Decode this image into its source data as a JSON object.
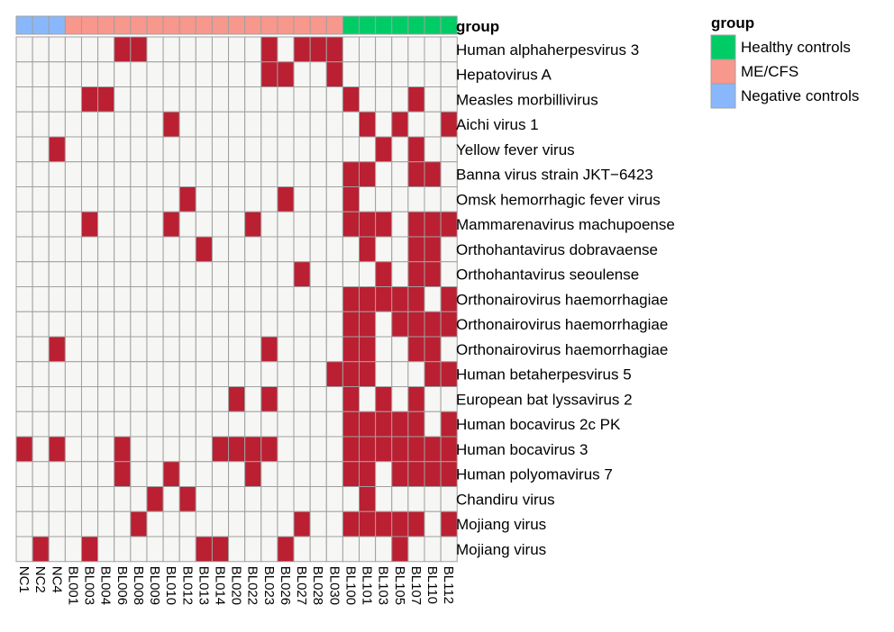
{
  "chart_data": {
    "type": "heatmap",
    "group_header": "group",
    "columns": [
      "NC1",
      "NC2",
      "NC4",
      "BL001",
      "BL003",
      "BL004",
      "BL006",
      "BL008",
      "BL009",
      "BL010",
      "BL012",
      "BL013",
      "BL014",
      "BL020",
      "BL022",
      "BL023",
      "BL026",
      "BL027",
      "BL028",
      "BL030",
      "BL100",
      "BL101",
      "BL103",
      "BL105",
      "BL107",
      "BL110",
      "BL112"
    ],
    "column_groups": [
      "Negative controls",
      "Negative controls",
      "Negative controls",
      "ME/CFS",
      "ME/CFS",
      "ME/CFS",
      "ME/CFS",
      "ME/CFS",
      "ME/CFS",
      "ME/CFS",
      "ME/CFS",
      "ME/CFS",
      "ME/CFS",
      "ME/CFS",
      "ME/CFS",
      "ME/CFS",
      "ME/CFS",
      "ME/CFS",
      "ME/CFS",
      "ME/CFS",
      "Healthy controls",
      "Healthy controls",
      "Healthy controls",
      "Healthy controls",
      "Healthy controls",
      "Healthy controls",
      "Healthy controls"
    ],
    "rows": [
      "Human alphaherpesvirus 3",
      "Hepatovirus A",
      "Measles morbillivirus",
      "Aichi virus 1",
      "Yellow fever virus",
      "Banna virus strain JKT−6423",
      "Omsk hemorrhagic fever virus",
      "Mammarenavirus machupoense",
      "Orthohantavirus dobravaense",
      "Orthohantavirus seoulense",
      "Orthonairovirus haemorrhagiae",
      "Orthonairovirus haemorrhagiae",
      "Orthonairovirus haemorrhagiae",
      "Human betaherpesvirus 5",
      "European bat lyssavirus 2",
      "Human bocavirus 2c PK",
      "Human bocavirus 3",
      "Human polyomavirus 7",
      "Chandiru virus",
      "Mojiang virus",
      "Mojiang virus"
    ],
    "matrix": [
      [
        0,
        0,
        0,
        0,
        0,
        0,
        1,
        1,
        0,
        0,
        0,
        0,
        0,
        0,
        0,
        1,
        0,
        1,
        1,
        1,
        0,
        0,
        0,
        0,
        0,
        0,
        0
      ],
      [
        0,
        0,
        0,
        0,
        0,
        0,
        0,
        0,
        0,
        0,
        0,
        0,
        0,
        0,
        0,
        1,
        1,
        0,
        0,
        1,
        0,
        0,
        0,
        0,
        0,
        0,
        0
      ],
      [
        0,
        0,
        0,
        0,
        1,
        1,
        0,
        0,
        0,
        0,
        0,
        0,
        0,
        0,
        0,
        0,
        0,
        0,
        0,
        0,
        1,
        0,
        0,
        0,
        1,
        0,
        0
      ],
      [
        0,
        0,
        0,
        0,
        0,
        0,
        0,
        0,
        0,
        1,
        0,
        0,
        0,
        0,
        0,
        0,
        0,
        0,
        0,
        0,
        0,
        1,
        0,
        1,
        0,
        0,
        1
      ],
      [
        0,
        0,
        1,
        0,
        0,
        0,
        0,
        0,
        0,
        0,
        0,
        0,
        0,
        0,
        0,
        0,
        0,
        0,
        0,
        0,
        0,
        0,
        1,
        0,
        1,
        0,
        0
      ],
      [
        0,
        0,
        0,
        0,
        0,
        0,
        0,
        0,
        0,
        0,
        0,
        0,
        0,
        0,
        0,
        0,
        0,
        0,
        0,
        0,
        1,
        1,
        0,
        0,
        1,
        1,
        0
      ],
      [
        0,
        0,
        0,
        0,
        0,
        0,
        0,
        0,
        0,
        0,
        1,
        0,
        0,
        0,
        0,
        0,
        1,
        0,
        0,
        0,
        1,
        0,
        0,
        0,
        0,
        0,
        0
      ],
      [
        0,
        0,
        0,
        0,
        1,
        0,
        0,
        0,
        0,
        1,
        0,
        0,
        0,
        0,
        1,
        0,
        0,
        0,
        0,
        0,
        1,
        1,
        1,
        0,
        1,
        1,
        1
      ],
      [
        0,
        0,
        0,
        0,
        0,
        0,
        0,
        0,
        0,
        0,
        0,
        1,
        0,
        0,
        0,
        0,
        0,
        0,
        0,
        0,
        0,
        1,
        0,
        0,
        1,
        1,
        0
      ],
      [
        0,
        0,
        0,
        0,
        0,
        0,
        0,
        0,
        0,
        0,
        0,
        0,
        0,
        0,
        0,
        0,
        0,
        1,
        0,
        0,
        0,
        0,
        1,
        0,
        1,
        1,
        0
      ],
      [
        0,
        0,
        0,
        0,
        0,
        0,
        0,
        0,
        0,
        0,
        0,
        0,
        0,
        0,
        0,
        0,
        0,
        0,
        0,
        0,
        1,
        1,
        1,
        1,
        1,
        0,
        1
      ],
      [
        0,
        0,
        0,
        0,
        0,
        0,
        0,
        0,
        0,
        0,
        0,
        0,
        0,
        0,
        0,
        0,
        0,
        0,
        0,
        0,
        1,
        1,
        0,
        1,
        1,
        1,
        1
      ],
      [
        0,
        0,
        1,
        0,
        0,
        0,
        0,
        0,
        0,
        0,
        0,
        0,
        0,
        0,
        0,
        1,
        0,
        0,
        0,
        0,
        1,
        1,
        0,
        0,
        1,
        1,
        0
      ],
      [
        0,
        0,
        0,
        0,
        0,
        0,
        0,
        0,
        0,
        0,
        0,
        0,
        0,
        0,
        0,
        0,
        0,
        0,
        0,
        1,
        1,
        1,
        0,
        0,
        0,
        1,
        1
      ],
      [
        0,
        0,
        0,
        0,
        0,
        0,
        0,
        0,
        0,
        0,
        0,
        0,
        0,
        1,
        0,
        1,
        0,
        0,
        0,
        0,
        1,
        0,
        1,
        0,
        1,
        0,
        0
      ],
      [
        0,
        0,
        0,
        0,
        0,
        0,
        0,
        0,
        0,
        0,
        0,
        0,
        0,
        0,
        0,
        0,
        0,
        0,
        0,
        0,
        1,
        1,
        1,
        1,
        1,
        0,
        1
      ],
      [
        1,
        0,
        1,
        0,
        0,
        0,
        1,
        0,
        0,
        0,
        0,
        0,
        1,
        1,
        1,
        1,
        0,
        0,
        0,
        0,
        1,
        1,
        1,
        1,
        1,
        1,
        1
      ],
      [
        0,
        0,
        0,
        0,
        0,
        0,
        1,
        0,
        0,
        1,
        0,
        0,
        0,
        0,
        1,
        0,
        0,
        0,
        0,
        0,
        1,
        1,
        0,
        1,
        1,
        1,
        1
      ],
      [
        0,
        0,
        0,
        0,
        0,
        0,
        0,
        0,
        1,
        0,
        1,
        0,
        0,
        0,
        0,
        0,
        0,
        0,
        0,
        0,
        0,
        1,
        0,
        0,
        0,
        0,
        0
      ],
      [
        0,
        0,
        0,
        0,
        0,
        0,
        0,
        1,
        0,
        0,
        0,
        0,
        0,
        0,
        0,
        0,
        0,
        1,
        0,
        0,
        1,
        1,
        1,
        1,
        1,
        0,
        1
      ],
      [
        0,
        1,
        0,
        0,
        1,
        0,
        0,
        0,
        0,
        0,
        0,
        1,
        1,
        0,
        0,
        0,
        1,
        0,
        0,
        0,
        0,
        0,
        0,
        1,
        0,
        0,
        0
      ]
    ],
    "legend": {
      "title": "group",
      "placement": "top-right",
      "entries": [
        {
          "label": "Healthy controls",
          "color": "#00cc66"
        },
        {
          "label": "ME/CFS",
          "color": "#f8978c"
        },
        {
          "label": "Negative controls",
          "color": "#88b8fb"
        }
      ]
    },
    "colors": {
      "present": "#bb1f32",
      "absent": "#f6f6f4",
      "grid": "#a0a0a0"
    }
  }
}
